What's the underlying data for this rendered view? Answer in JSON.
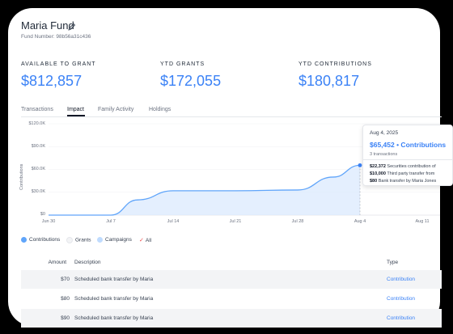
{
  "header": {
    "title": "Maria Fund",
    "fund_number": "Fund Number: 98b56a31c436"
  },
  "stats": [
    {
      "label": "AVAILABLE TO GRANT",
      "value": "$812,857"
    },
    {
      "label": "YTD GRANTS",
      "value": "$172,055"
    },
    {
      "label": "YTD CONTRIBUTIONS",
      "value": "$180,817"
    }
  ],
  "tabs": [
    {
      "label": "Transactions"
    },
    {
      "label": "Impact"
    },
    {
      "label": "Family Activity"
    },
    {
      "label": "Holdings"
    }
  ],
  "active_tab": "Impact",
  "chart_data": {
    "type": "area",
    "ylabel": "Contributions",
    "y_ticks": [
      "$120.0K",
      "$90.0K",
      "$60.0K",
      "$30.0K",
      "$0"
    ],
    "x_ticks": [
      "Jun 30",
      "Jul 7",
      "Jul 14",
      "Jul 21",
      "Jul 28",
      "Aug 4",
      "Aug 11"
    ],
    "ylim": [
      0,
      120000
    ],
    "series": [
      {
        "name": "Contributions",
        "color": "#60a5fa",
        "x": [
          "Jun 30",
          "Jul 7",
          "Jul 10",
          "Jul 14",
          "Jul 21",
          "Jul 28",
          "Aug 1",
          "Aug 4"
        ],
        "values": [
          0,
          0,
          20000,
          32000,
          32000,
          33000,
          50000,
          65452
        ]
      }
    ]
  },
  "tooltip": {
    "date": "Aug 4, 2025",
    "total": "$65,452 • Contributions",
    "count": "3 transactions",
    "rows": [
      {
        "amount": "$22,372",
        "desc": "Securities contribution of"
      },
      {
        "amount": "$10,000",
        "desc": "Third party transfer from"
      },
      {
        "amount": "$80",
        "desc": "Bank transfer by Maria Jones"
      }
    ]
  },
  "legend": [
    {
      "label": "Contributions",
      "color": "#60a5fa"
    },
    {
      "label": "Grants",
      "color": "#e5e7eb"
    },
    {
      "label": "Campaigns",
      "color": "#bfdbfe"
    },
    {
      "label": "All",
      "color": "#ef4444"
    }
  ],
  "table": {
    "headers": {
      "amount": "Amount",
      "description": "Description",
      "type": "Type"
    },
    "rows": [
      {
        "amount": "$70",
        "description": "Scheduled bank transfer by Maria",
        "type": "Contribution"
      },
      {
        "amount": "$80",
        "description": "Scheduled bank transfer by Maria",
        "type": "Contribution"
      },
      {
        "amount": "$90",
        "description": "Scheduled bank transfer by Maria",
        "type": "Contribution"
      }
    ]
  }
}
